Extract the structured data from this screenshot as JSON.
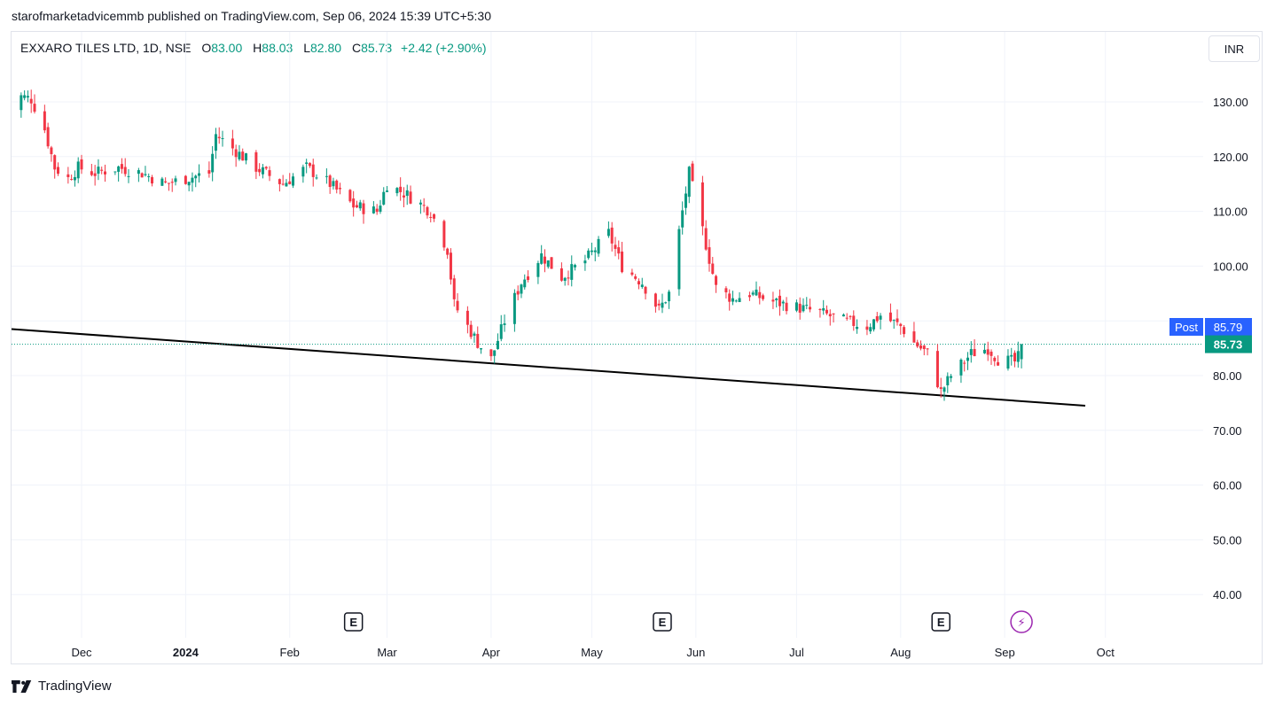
{
  "header": {
    "publish_line": "starofmarketadvicemmb published on TradingView.com, Sep 06, 2024 15:39 UTC+5:30"
  },
  "legend": {
    "symbol": "EXXARO TILES LTD, 1D, NSE",
    "o_label": "O",
    "o_value": "83.00",
    "h_label": "H",
    "h_value": "88.03",
    "l_label": "L",
    "l_value": "82.80",
    "c_label": "C",
    "c_value": "85.73",
    "change": "+2.42 (+2.90%)"
  },
  "currency_button": "INR",
  "price_labels": {
    "post_label": "Post",
    "post_price": "85.79",
    "last_price": "85.73"
  },
  "footer": {
    "brand": "TradingView"
  },
  "colors": {
    "up": "#089981",
    "down": "#f23645",
    "post": "#2962ff",
    "grid": "#f0f3fa"
  },
  "event_icons": [
    {
      "type": "earnings",
      "label": "E",
      "date": "2024-02-20"
    },
    {
      "type": "earnings",
      "label": "E",
      "date": "2024-05-22"
    },
    {
      "type": "earnings",
      "label": "E",
      "date": "2024-08-13"
    },
    {
      "type": "dividend-split",
      "label": "⚡",
      "date": "2024-09-06"
    }
  ],
  "chart_data": {
    "type": "candlestick",
    "ylim": [
      33,
      140
    ],
    "y_ticks": [
      "130.00",
      "120.00",
      "110.00",
      "100.00",
      "80.00",
      "70.00",
      "60.00",
      "50.00",
      "40.00"
    ],
    "x_ticks": [
      {
        "label": "Dec",
        "date": "2023-12-01",
        "bold": false
      },
      {
        "label": "2024",
        "date": "2024-01-01",
        "bold": true
      },
      {
        "label": "Feb",
        "date": "2024-02-01",
        "bold": false
      },
      {
        "label": "Mar",
        "date": "2024-03-01",
        "bold": false
      },
      {
        "label": "Apr",
        "date": "2024-04-01",
        "bold": false
      },
      {
        "label": "May",
        "date": "2024-05-01",
        "bold": false
      },
      {
        "label": "Jun",
        "date": "2024-06-01",
        "bold": false
      },
      {
        "label": "Jul",
        "date": "2024-07-01",
        "bold": false
      },
      {
        "label": "Aug",
        "date": "2024-08-01",
        "bold": false
      },
      {
        "label": "Sep",
        "date": "2024-09-01",
        "bold": false
      },
      {
        "label": "Oct",
        "date": "2024-10-01",
        "bold": false
      }
    ],
    "trendline": {
      "start": {
        "date": "2023-11-09",
        "value": 88.5
      },
      "end": {
        "date": "2024-09-25",
        "value": 74.5
      }
    },
    "last_price_line": 85.73,
    "close_path": [
      [
        "2023-11-09",
        128
      ],
      [
        "2023-11-13",
        131
      ],
      [
        "2023-11-16",
        130.5
      ],
      [
        "2023-11-20",
        125
      ],
      [
        "2023-11-23",
        118
      ],
      [
        "2023-11-27",
        116
      ],
      [
        "2023-11-30",
        118
      ],
      [
        "2023-12-05",
        117
      ],
      [
        "2023-12-12",
        118
      ],
      [
        "2023-12-19",
        117
      ],
      [
        "2023-12-26",
        115
      ],
      [
        "2024-01-01",
        116
      ],
      [
        "2024-01-08",
        117
      ],
      [
        "2024-01-10",
        124
      ],
      [
        "2024-01-16",
        121
      ],
      [
        "2024-01-22",
        118
      ],
      [
        "2024-01-30",
        115
      ],
      [
        "2024-02-06",
        118
      ],
      [
        "2024-02-13",
        115
      ],
      [
        "2024-02-20",
        111
      ],
      [
        "2024-02-27",
        110
      ],
      [
        "2024-03-01",
        115
      ],
      [
        "2024-03-07",
        113
      ],
      [
        "2024-03-14",
        110
      ],
      [
        "2024-03-19",
        103
      ],
      [
        "2024-03-21",
        93
      ],
      [
        "2024-03-28",
        86
      ],
      [
        "2024-04-01",
        83
      ],
      [
        "2024-04-05",
        90
      ],
      [
        "2024-04-10",
        97
      ],
      [
        "2024-04-16",
        102
      ],
      [
        "2024-04-22",
        98
      ],
      [
        "2024-04-29",
        101
      ],
      [
        "2024-05-06",
        106
      ],
      [
        "2024-05-10",
        100
      ],
      [
        "2024-05-16",
        97
      ],
      [
        "2024-05-21",
        92
      ],
      [
        "2024-05-24",
        95
      ],
      [
        "2024-05-28",
        110
      ],
      [
        "2024-05-30",
        117
      ],
      [
        "2024-06-04",
        104
      ],
      [
        "2024-06-07",
        96
      ],
      [
        "2024-06-12",
        94
      ],
      [
        "2024-06-17",
        95
      ],
      [
        "2024-06-24",
        93.5
      ],
      [
        "2024-07-01",
        92.5
      ],
      [
        "2024-07-08",
        91.5
      ],
      [
        "2024-07-15",
        90
      ],
      [
        "2024-07-22",
        89
      ],
      [
        "2024-07-26",
        91
      ],
      [
        "2024-08-01",
        89
      ],
      [
        "2024-08-05",
        86
      ],
      [
        "2024-08-09",
        84
      ],
      [
        "2024-08-13",
        77
      ],
      [
        "2024-08-16",
        80
      ],
      [
        "2024-08-22",
        84
      ],
      [
        "2024-08-27",
        85
      ],
      [
        "2024-08-30",
        83
      ],
      [
        "2024-09-04",
        82.5
      ],
      [
        "2024-09-05",
        83.3
      ],
      [
        "2024-09-06",
        85.73
      ]
    ]
  }
}
